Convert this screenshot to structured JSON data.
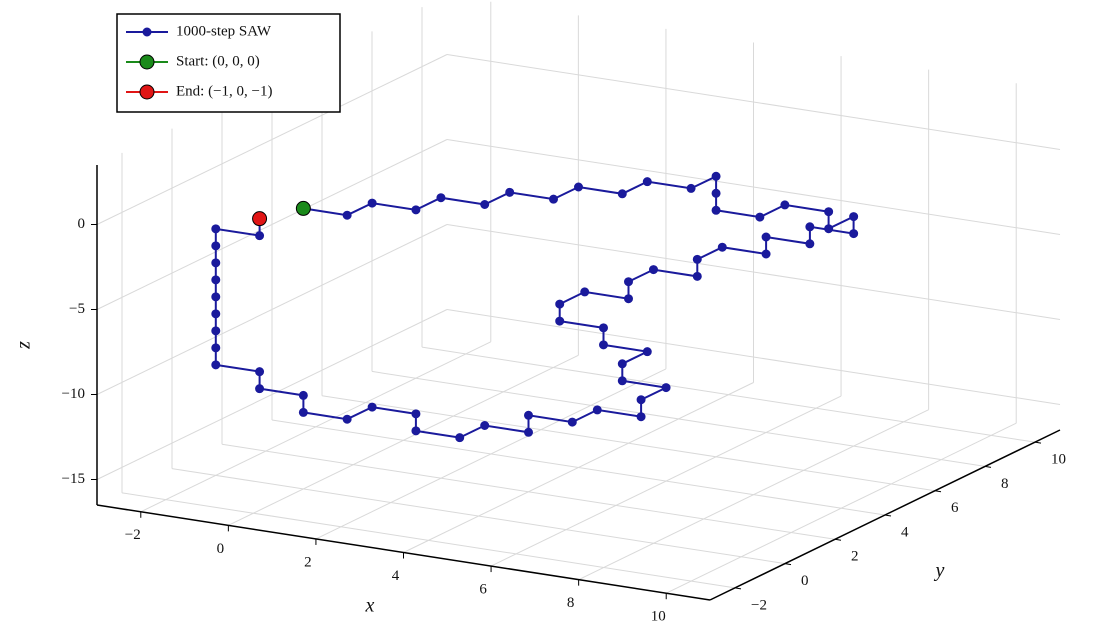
{
  "chart_data": {
    "type": "line3d",
    "xlabel": "x",
    "ylabel": "y",
    "zlabel": "z",
    "xlim": [
      -3,
      11
    ],
    "ylim": [
      -3,
      11
    ],
    "zlim": [
      -16.5,
      3.5
    ],
    "xticks": [
      {
        "value": -2,
        "label": "−2"
      },
      0,
      2,
      4,
      6,
      8,
      10
    ],
    "yticks": [
      {
        "value": -2,
        "label": "−2"
      },
      0,
      2,
      4,
      6,
      8,
      10
    ],
    "zticks": [
      {
        "value": -15,
        "label": "−15"
      },
      {
        "value": -10,
        "label": "−10"
      },
      {
        "value": -5,
        "label": "−5"
      },
      0
    ],
    "grid": true,
    "legend": "upper left",
    "series": [
      {
        "name": "1000-step SAW",
        "color": "#1a1a9c",
        "x": [
          0,
          1,
          1,
          2,
          2,
          3,
          3,
          4,
          4,
          5,
          5,
          6,
          6,
          6,
          6,
          7,
          7,
          8,
          8,
          8,
          8,
          7,
          7,
          6,
          6,
          5,
          5,
          5,
          4,
          4,
          4,
          3,
          3,
          3,
          4,
          4,
          5,
          5,
          5,
          6,
          6,
          6,
          5,
          5,
          4,
          4,
          3,
          3,
          2,
          2,
          1,
          1,
          0,
          0,
          -1,
          -1,
          -2,
          -2,
          -2,
          -2,
          -2,
          -2,
          -2,
          -2,
          -2,
          -1,
          -1
        ],
        "y": [
          0,
          0,
          1,
          1,
          2,
          2,
          3,
          3,
          4,
          4,
          5,
          5,
          6,
          6,
          6,
          6,
          7,
          7,
          7,
          8,
          8,
          8,
          8,
          8,
          8,
          8,
          7,
          7,
          7,
          6,
          6,
          6,
          5,
          5,
          5,
          5,
          5,
          4,
          4,
          4,
          3,
          3,
          3,
          2,
          2,
          2,
          2,
          1,
          1,
          1,
          1,
          0,
          0,
          0,
          0,
          0,
          0,
          0,
          0,
          0,
          0,
          0,
          0,
          0,
          0,
          0,
          0
        ],
        "z": [
          0,
          0,
          0,
          0,
          0,
          0,
          0,
          0,
          0,
          0,
          0,
          0,
          0,
          -1,
          -2,
          -2,
          -2,
          -2,
          -3,
          -3,
          -4,
          -4,
          -5,
          -5,
          -6,
          -6,
          -6,
          -7,
          -7,
          -7,
          -8,
          -8,
          -8,
          -9,
          -9,
          -10,
          -10,
          -10,
          -11,
          -11,
          -11,
          -12,
          -12,
          -12,
          -12,
          -13,
          -13,
          -13,
          -13,
          -12,
          -12,
          -12,
          -12,
          -11,
          -11,
          -10,
          -10,
          -9,
          -8,
          -7,
          -6,
          -5,
          -4,
          -3,
          -2,
          -2,
          -1
        ]
      },
      {
        "name": "Start: (0, 0, 0)",
        "color": "#1a8a1a",
        "x": [
          0
        ],
        "y": [
          0
        ],
        "z": [
          0
        ]
      },
      {
        "name": "End: (−1, 0, −1)",
        "color": "#e01515",
        "x": [
          -1
        ],
        "y": [
          0
        ],
        "z": [
          -1
        ]
      }
    ]
  }
}
